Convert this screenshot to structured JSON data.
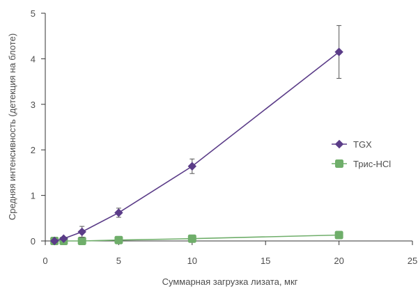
{
  "chart_data": {
    "type": "line",
    "xlabel": "Суммарная загрузка лизата, мкг",
    "ylabel": "Средняя интенсивность (детекция на блоте)",
    "xlim": [
      0,
      25
    ],
    "ylim": [
      0,
      5
    ],
    "xticks": [
      0,
      5,
      10,
      15,
      20,
      25
    ],
    "yticks": [
      0,
      1,
      2,
      3,
      4,
      5
    ],
    "grid": false,
    "legend_position": "right",
    "series": [
      {
        "name": "TGX",
        "color": "#5b3c88",
        "marker": "diamond",
        "x": [
          0.625,
          1.25,
          2.5,
          5,
          10,
          20
        ],
        "y": [
          0.0,
          0.05,
          0.2,
          0.62,
          1.64,
          4.15
        ],
        "err": [
          0.0,
          0.0,
          0.12,
          0.1,
          0.16,
          0.58
        ]
      },
      {
        "name": "Трис-HCl",
        "color": "#6fae6a",
        "marker": "square",
        "x": [
          0.625,
          1.25,
          2.5,
          5,
          10,
          20
        ],
        "y": [
          0.0,
          0.0,
          0.0,
          0.02,
          0.05,
          0.13
        ],
        "err": [
          0,
          0,
          0,
          0,
          0,
          0
        ]
      }
    ]
  }
}
